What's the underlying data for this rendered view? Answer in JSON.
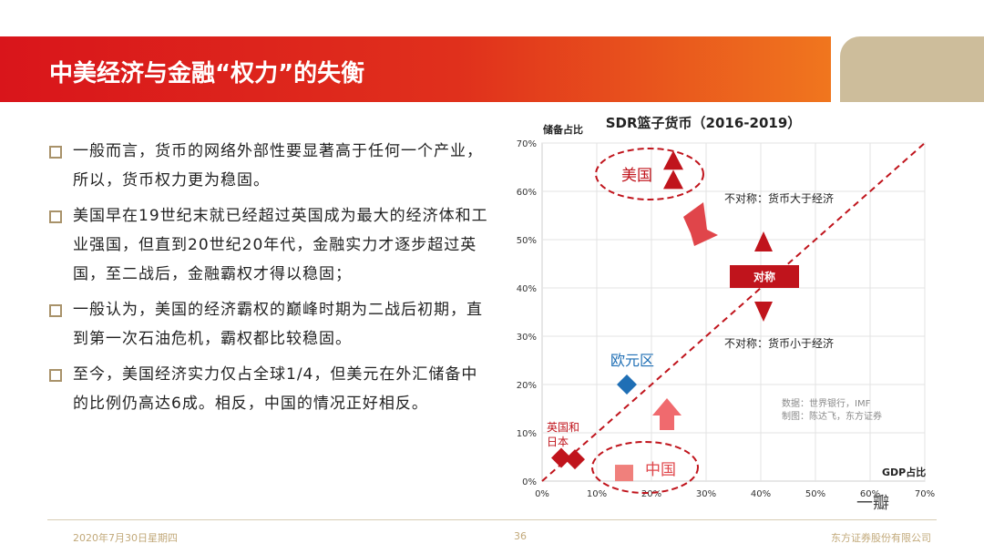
{
  "slide": {
    "title": "中美经济与金融“权力”的失衡",
    "bullets": [
      "一般而言，货币的网络外部性要显著高于任何一个产业，所以，货币权力更为稳固。",
      "美国早在19世纪末就已经超过英国成为最大的经济体和工业强国，但直到20世纪20年代，金融实力才逐步超过英国，至二战后，金融霸权才得以稳固；",
      "一般认为，美国的经济霸权的巅峰时期为二战后初期，直到第一次石油危机，霸权都比较稳固。",
      "至今，美国经济实力仅占全球1/4，但美元在外汇储备中的比例仍高达6成。相反，中国的情况正好相反。"
    ]
  },
  "footer": {
    "date": "2020年7月30日星期四",
    "page": "36",
    "company": "东方证券股份有限公司",
    "watermark": "一瓣"
  },
  "chart_data": {
    "type": "scatter",
    "title": "SDR篮子货币（2016-2019）",
    "xlabel": "GDP占比",
    "ylabel": "储备占比",
    "xlim": [
      0,
      70
    ],
    "ylim": [
      0,
      70
    ],
    "x_ticks": [
      "0%",
      "10%",
      "20%",
      "30%",
      "40%",
      "50%",
      "60%",
      "70%"
    ],
    "y_ticks": [
      "0%",
      "10%",
      "20%",
      "30%",
      "40%",
      "50%",
      "60%",
      "70%"
    ],
    "diagonal": "y = x",
    "series": [
      {
        "name": "美国",
        "points": [
          [
            24,
            66
          ],
          [
            24,
            62
          ]
        ],
        "color": "#c0141c",
        "marker": "triangle"
      },
      {
        "name": "欧元区",
        "points": [
          [
            15.5,
            20
          ]
        ],
        "color": "#1f6fb5",
        "marker": "diamond"
      },
      {
        "name": "英国和日本",
        "points": [
          [
            3.5,
            4.8
          ],
          [
            6,
            4.5
          ]
        ],
        "color": "#c0141c",
        "marker": "diamond"
      },
      {
        "name": "中国",
        "points": [
          [
            15,
            1.5
          ]
        ],
        "color": "#f0807c",
        "marker": "square"
      }
    ],
    "annotations": {
      "symmetric": "对称",
      "above": "不对称：货币大于经济",
      "below": "不对称：货币小于经济",
      "source_line1": "数据：世界银行，IMF",
      "source_line2": "制图：陈达飞，东方证券"
    }
  }
}
